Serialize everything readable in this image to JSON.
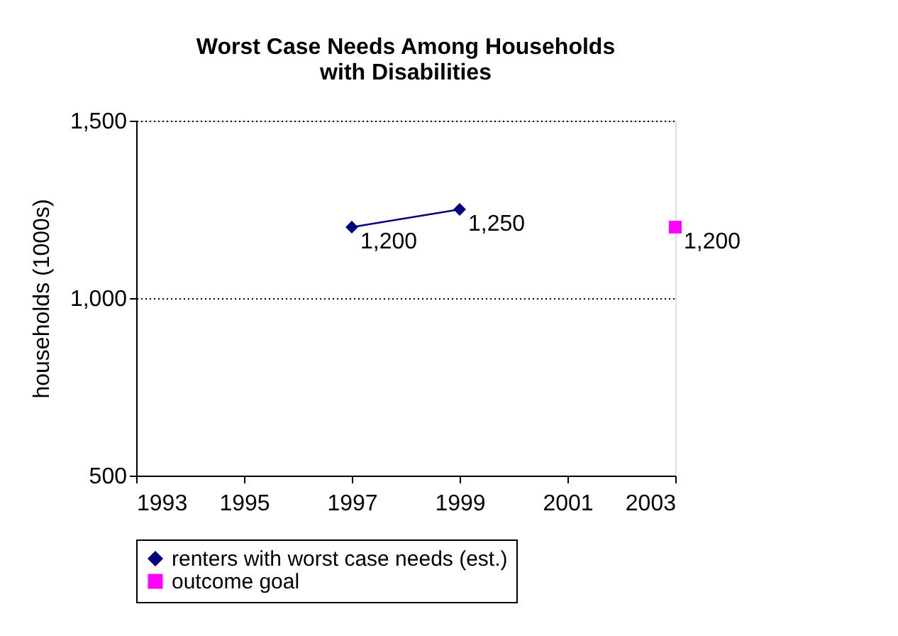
{
  "chart_data": {
    "type": "line",
    "title": "Worst Case Needs Among Households\nwith Disabilities",
    "ylabel": "households (1000s)",
    "xlim": [
      1993,
      2003
    ],
    "xticks": [
      1993,
      1995,
      1997,
      1999,
      2001,
      2003
    ],
    "ylim": [
      500,
      1500
    ],
    "yticks": [
      {
        "value": 500,
        "label": "500"
      },
      {
        "value": 1000,
        "label": "1,000"
      },
      {
        "value": 1500,
        "label": "1,500"
      }
    ],
    "grid": "y",
    "legend": "bottom",
    "series": [
      {
        "name": "renters with worst case needs (est.)",
        "color": "#000080",
        "marker": "diamond",
        "x": [
          1997,
          1999
        ],
        "values": [
          1200,
          1250
        ],
        "value_labels": [
          "1,200",
          "1,250"
        ]
      },
      {
        "name": "outcome goal",
        "color": "#ff00ff",
        "marker": "square",
        "x": [
          2003
        ],
        "values": [
          1200
        ],
        "value_labels": [
          "1,200"
        ]
      }
    ]
  }
}
